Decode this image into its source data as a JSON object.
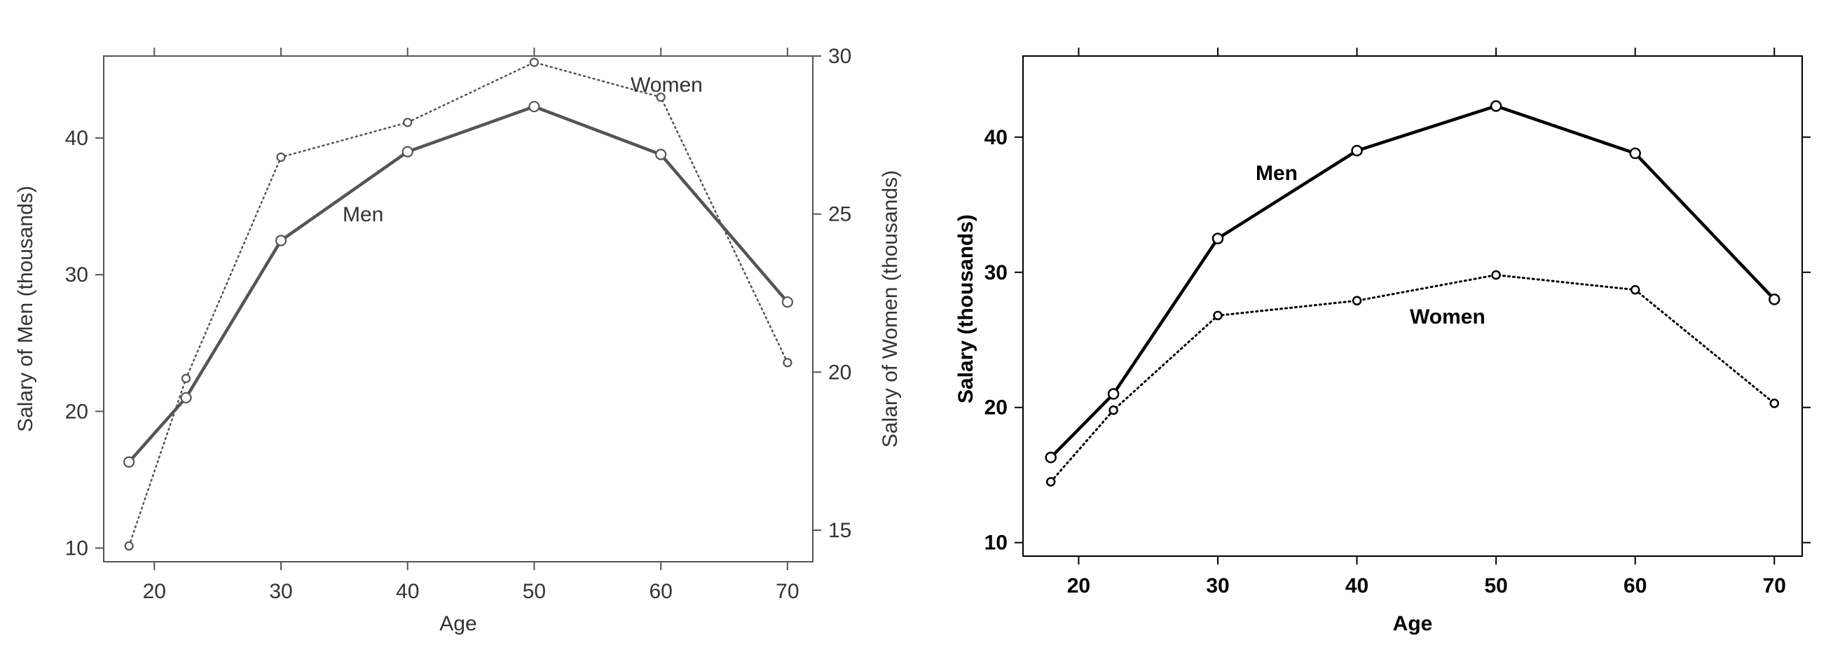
{
  "chart_data": [
    {
      "type": "line",
      "xlabel": "Age",
      "ylabel_left": "Salary of Men (thousands)",
      "ylabel_right": "Salary of Women (thousands)",
      "xlim": [
        16,
        72
      ],
      "ylim_left": [
        9,
        46
      ],
      "ylim_right": [
        14,
        30
      ],
      "x_ticks": [
        "20",
        "30",
        "40",
        "50",
        "60",
        "70"
      ],
      "y_ticks_left": [
        "10",
        "20",
        "30",
        "40"
      ],
      "y_ticks_right": [
        "15",
        "20",
        "25",
        "30"
      ],
      "grid": false,
      "series": [
        {
          "name": "Men",
          "axis": "left",
          "style": "solid",
          "color": "#555555",
          "x": [
            18,
            22.5,
            30,
            40,
            50,
            60,
            70
          ],
          "y": [
            16.3,
            21.0,
            32.5,
            39.0,
            42.3,
            38.8,
            28.0
          ]
        },
        {
          "name": "Women",
          "axis": "right",
          "style": "dotted",
          "color": "#555555",
          "x": [
            18,
            22.5,
            30,
            40,
            50,
            60,
            70
          ],
          "y": [
            14.5,
            19.8,
            26.8,
            27.9,
            29.8,
            28.7,
            20.3
          ]
        }
      ]
    },
    {
      "type": "line",
      "xlabel": "Age",
      "ylabel": "Salary (thousands)",
      "xlim": [
        16,
        72
      ],
      "ylim": [
        9,
        46
      ],
      "x_ticks": [
        "20",
        "30",
        "40",
        "50",
        "60",
        "70"
      ],
      "y_ticks": [
        "10",
        "20",
        "30",
        "40"
      ],
      "grid": false,
      "series": [
        {
          "name": "Men",
          "style": "solid",
          "color": "#000000",
          "x": [
            18,
            22.5,
            30,
            40,
            50,
            60,
            70
          ],
          "y": [
            16.3,
            21.0,
            32.5,
            39.0,
            42.3,
            38.8,
            28.0
          ]
        },
        {
          "name": "Women",
          "style": "dotted",
          "color": "#000000",
          "x": [
            18,
            22.5,
            30,
            40,
            50,
            60,
            70
          ],
          "y": [
            14.5,
            19.8,
            26.8,
            27.9,
            29.8,
            28.7,
            20.3
          ]
        }
      ]
    }
  ]
}
